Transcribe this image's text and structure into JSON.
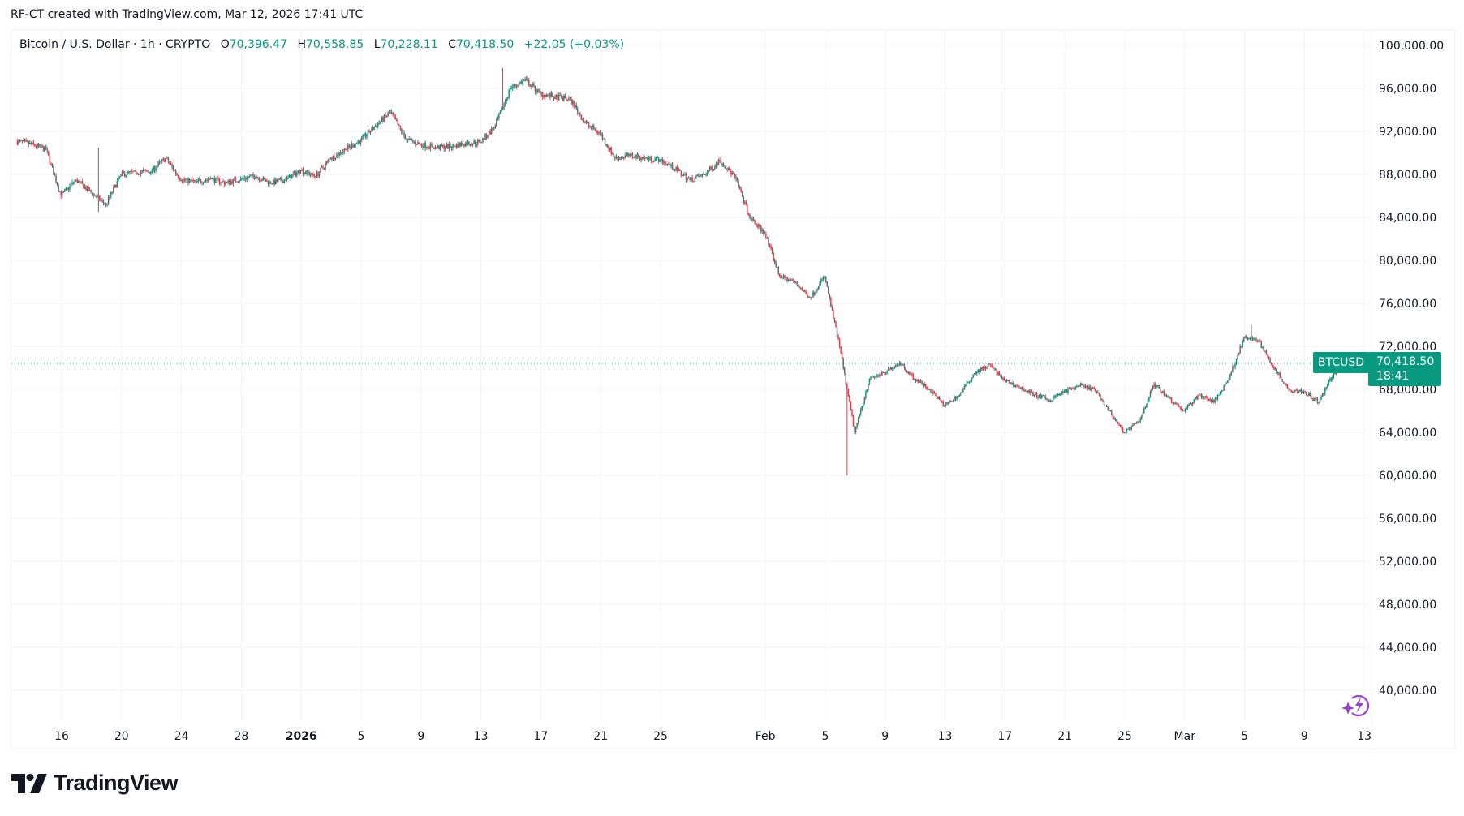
{
  "credit": "RF-CT created with TradingView.com, Mar 12, 2026 17:41 UTC",
  "legend": {
    "symbol": "Bitcoin / U.S. Dollar · 1h · CRYPTO",
    "o_label": "O",
    "o": "70,396.47",
    "h_label": "H",
    "h": "70,558.85",
    "l_label": "L",
    "l": "70,228.11",
    "c_label": "C",
    "c": "70,418.50",
    "change": "+22.05 (+0.03%)"
  },
  "price_label": {
    "symbol": "BTCUSD",
    "price": "70,418.50",
    "countdown": "18:41"
  },
  "logo": {
    "text": "TradingView"
  },
  "icons": {
    "bolt": "sparkle-lightning-icon"
  },
  "colors": {
    "up": "#089981",
    "down": "#f23645",
    "accent": "#089981",
    "bolt": "#9c3fd4"
  },
  "chart_data": {
    "type": "candlestick",
    "interval": "1h (approximated as daily closes)",
    "y_ticks": [
      "100,000.00",
      "96,000.00",
      "92,000.00",
      "88,000.00",
      "84,000.00",
      "80,000.00",
      "76,000.00",
      "72,000.00",
      "68,000.00",
      "64,000.00",
      "60,000.00",
      "56,000.00",
      "52,000.00",
      "48,000.00",
      "44,000.00",
      "40,000.00"
    ],
    "ylim": [
      37000,
      101500
    ],
    "x_ticks": [
      {
        "label": "16",
        "date": "2025-12-16"
      },
      {
        "label": "20",
        "date": "2025-12-20"
      },
      {
        "label": "24",
        "date": "2025-12-24"
      },
      {
        "label": "28",
        "date": "2025-12-28"
      },
      {
        "label": "2026",
        "date": "2026-01-01",
        "bold": true
      },
      {
        "label": "5",
        "date": "2026-01-05"
      },
      {
        "label": "9",
        "date": "2026-01-09"
      },
      {
        "label": "13",
        "date": "2026-01-13"
      },
      {
        "label": "17",
        "date": "2026-01-17"
      },
      {
        "label": "21",
        "date": "2026-01-21"
      },
      {
        "label": "25",
        "date": "2026-01-25"
      },
      {
        "label": "Feb",
        "date": "2026-02-01"
      },
      {
        "label": "5",
        "date": "2026-02-05"
      },
      {
        "label": "9",
        "date": "2026-02-09"
      },
      {
        "label": "13",
        "date": "2026-02-13"
      },
      {
        "label": "17",
        "date": "2026-02-17"
      },
      {
        "label": "21",
        "date": "2026-02-21"
      },
      {
        "label": "25",
        "date": "2026-02-25"
      },
      {
        "label": "Mar",
        "date": "2026-03-01"
      },
      {
        "label": "5",
        "date": "2026-03-05"
      },
      {
        "label": "9",
        "date": "2026-03-09"
      },
      {
        "label": "13",
        "date": "2026-03-13"
      }
    ],
    "start_date": "2025-12-13",
    "closes": [
      90800,
      90300,
      86000,
      87500,
      86300,
      85200,
      88000,
      88200,
      88300,
      89500,
      87500,
      87300,
      87600,
      87200,
      87600,
      87800,
      87200,
      87500,
      88400,
      87800,
      89500,
      90300,
      91200,
      92500,
      93800,
      91300,
      90800,
      90500,
      90600,
      90900,
      91000,
      92500,
      96000,
      96800,
      95500,
      95200,
      95000,
      92800,
      91800,
      89500,
      89800,
      89500,
      89400,
      88500,
      87500,
      88000,
      89300,
      87800,
      84000,
      82500,
      78500,
      78000,
      76500,
      78500,
      72000,
      64000,
      69000,
      69500,
      70500,
      69000,
      68000,
      66500,
      67500,
      69500,
      70300,
      68800,
      68200,
      67500,
      67000,
      67800,
      68300,
      68000,
      66000,
      64000,
      65000,
      68500,
      67200,
      66000,
      67500,
      66800,
      69000,
      72800,
      72500,
      70000,
      68000,
      67800,
      66800,
      69500,
      70200,
      70418.5
    ],
    "extremes": [
      {
        "date": "2026-01-14",
        "high": 97900
      },
      {
        "date": "2026-02-06",
        "low": 60000
      },
      {
        "date": "2026-03-05",
        "high": 74000
      },
      {
        "date": "2025-12-18",
        "high": 90500,
        "low": 84500
      }
    ],
    "last_price": 70418.5,
    "grid": true
  }
}
